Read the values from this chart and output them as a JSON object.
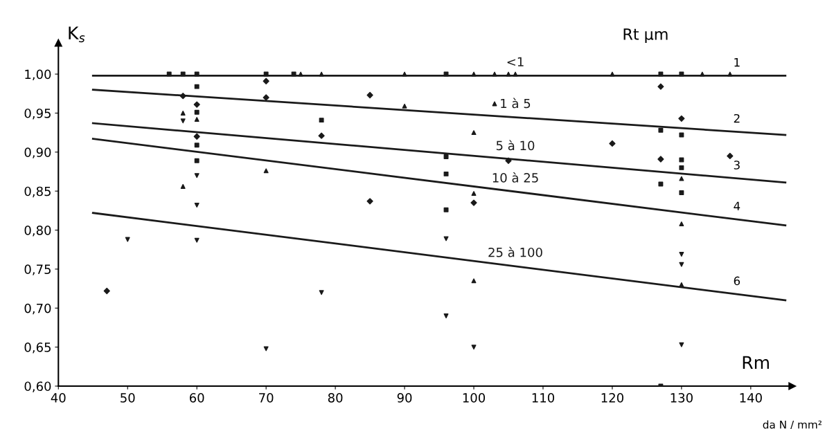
{
  "chart_data": {
    "type": "scatter",
    "xlabel": "Rm",
    "ylabel": "K$_{s}$",
    "annotations": [
      "Rt µm",
      "da N / mm²",
      "1",
      "2",
      "3",
      "4",
      "6"
    ],
    "series": [
      {
        "type": "line",
        "name": "<1",
        "color": "#1a1a1a",
        "x": [
          45,
          145
        ],
        "values": [
          0.998,
          0.998
        ]
      },
      {
        "type": "line",
        "name": "1 à 5",
        "color": "#1a1a1a",
        "x": [
          45,
          145
        ],
        "values": [
          0.98,
          0.922
        ]
      },
      {
        "type": "line",
        "name": "5 à 10",
        "color": "#1a1a1a",
        "x": [
          45,
          145
        ],
        "values": [
          0.937,
          0.861
        ]
      },
      {
        "type": "line",
        "name": "10 à 25",
        "color": "#1a1a1a",
        "x": [
          45,
          145
        ],
        "values": [
          0.917,
          0.806
        ]
      },
      {
        "type": "line",
        "name": "25 à 100",
        "color": "#1a1a1a",
        "x": [
          45,
          145
        ],
        "values": [
          0.822,
          0.71
        ]
      },
      {
        "marker": "square",
        "color": "#1a1a1a",
        "x": [
          56,
          58,
          60,
          70,
          74,
          96,
          60,
          60,
          60,
          60,
          78,
          96,
          96,
          96,
          127,
          130,
          127,
          130,
          130,
          130,
          127,
          130,
          127
        ],
        "values": [
          1.0,
          1.0,
          1.0,
          1.0,
          1.0,
          1.0,
          0.984,
          0.951,
          0.909,
          0.889,
          0.941,
          0.894,
          0.872,
          0.826,
          0.928,
          0.922,
          0.859,
          0.848,
          0.89,
          0.88,
          1.0,
          1.0,
          0.6
        ]
      },
      {
        "marker": "triangle",
        "color": "#1a1a1a",
        "x": [
          75,
          78,
          90,
          100,
          103,
          105,
          106,
          120,
          133,
          137,
          58,
          60,
          58,
          70,
          90,
          103,
          100,
          100,
          100,
          130,
          130,
          130
        ],
        "values": [
          1.0,
          1.0,
          1.0,
          1.0,
          1.0,
          1.0,
          1.0,
          1.0,
          1.0,
          1.0,
          0.95,
          0.942,
          0.856,
          0.876,
          0.959,
          0.962,
          0.925,
          0.847,
          0.735,
          0.866,
          0.808,
          0.73
        ]
      },
      {
        "marker": "triangle_down",
        "color": "#1a1a1a",
        "x": [
          58,
          60,
          60,
          50,
          60,
          70,
          96,
          78,
          96,
          100,
          130,
          130,
          130
        ],
        "values": [
          0.94,
          0.87,
          0.832,
          0.788,
          0.787,
          0.648,
          0.789,
          0.72,
          0.69,
          0.65,
          0.769,
          0.756,
          0.653
        ]
      },
      {
        "marker": "diamond",
        "color": "#1a1a1a",
        "x": [
          70,
          58,
          70,
          60,
          60,
          78,
          85,
          105,
          100,
          85,
          127,
          130,
          120,
          137,
          127,
          47
        ],
        "values": [
          0.991,
          0.972,
          0.97,
          0.961,
          0.92,
          0.921,
          0.973,
          0.889,
          0.835,
          0.837,
          0.984,
          0.943,
          0.911,
          0.895,
          0.891,
          0.722
        ]
      }
    ],
    "xlim": [
      40,
      146
    ],
    "ylim": [
      0.6,
      1.04
    ],
    "xticks": [
      40,
      50,
      60,
      70,
      80,
      90,
      100,
      110,
      120,
      130,
      140
    ],
    "yticks": [
      {
        "value": 0.6,
        "label": "0,60"
      },
      {
        "value": 0.65,
        "label": "0,65"
      },
      {
        "value": 0.7,
        "label": "0,70"
      },
      {
        "value": 0.75,
        "label": "0,75"
      },
      {
        "value": 0.8,
        "label": "0,80"
      },
      {
        "value": 0.85,
        "label": "0,85"
      },
      {
        "value": 0.9,
        "label": "0,90"
      },
      {
        "value": 0.95,
        "label": "0,95"
      },
      {
        "value": 1.0,
        "label": "1,00"
      }
    ],
    "grid": false,
    "legend": false
  }
}
